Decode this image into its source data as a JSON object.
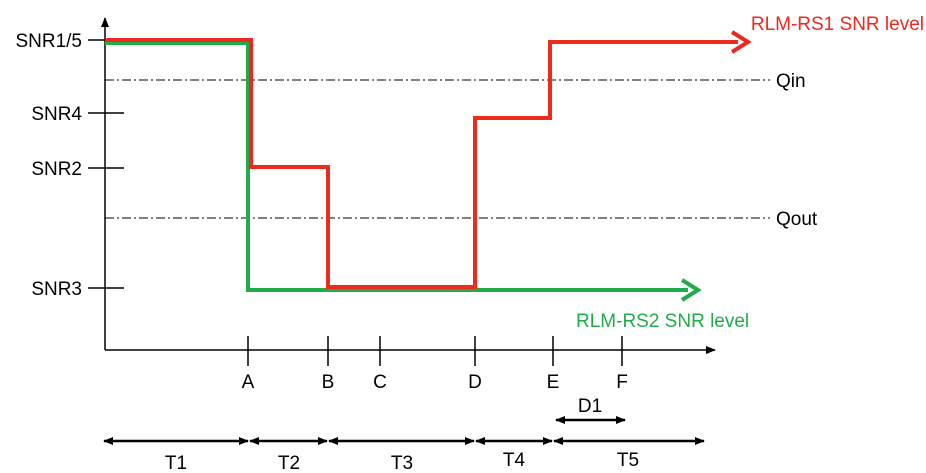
{
  "colors": {
    "rs1": "#ee2a1e",
    "rs2": "#1fad4a",
    "axis": "#000000"
  },
  "y_labels": {
    "snr15": "SNR1/5",
    "snr4": "SNR4",
    "snr2": "SNR2",
    "snr3": "SNR3"
  },
  "thresholds": {
    "qin": "Qin",
    "qout": "Qout"
  },
  "x_labels": {
    "a": "A",
    "b": "B",
    "c": "C",
    "d": "D",
    "e": "E",
    "f": "F"
  },
  "intervals": {
    "t1": "T1",
    "t2": "T2",
    "t3": "T3",
    "t4": "T4",
    "t5": "T5",
    "d1": "D1"
  },
  "series": {
    "rs1": "RLM-RS1 SNR level",
    "rs2": "RLM-RS2 SNR level"
  }
}
